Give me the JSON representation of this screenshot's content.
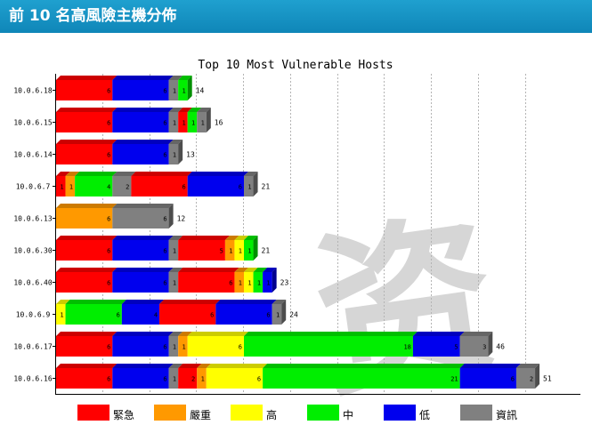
{
  "header": {
    "title": "前 10 名高風險主機分佈"
  },
  "watermark": {
    "glyph": "资"
  },
  "chart_data": {
    "type": "bar",
    "orientation": "horizontal",
    "stacked": true,
    "title": "Top 10 Most Vulnerable Hosts",
    "xlabel": "",
    "ylabel": "",
    "grid": true,
    "legend_position": "bottom",
    "categories": [
      "10.0.6.18",
      "10.0.6.15",
      "10.0.6.14",
      "10.0.6.7",
      "10.0.6.13",
      "10.0.6.30",
      "10.0.6.40",
      "10.0.6.9",
      "10.0.6.17",
      "10.0.6.16"
    ],
    "totals": [
      14,
      16,
      13,
      21,
      12,
      21,
      23,
      24,
      46,
      51
    ],
    "bars": [
      [
        {
          "s": "緊急",
          "v": 6
        },
        {
          "s": "低",
          "v": 6
        },
        {
          "s": "資訊",
          "v": 1
        },
        {
          "s": "中",
          "v": 1
        }
      ],
      [
        {
          "s": "緊急",
          "v": 6
        },
        {
          "s": "低",
          "v": 6
        },
        {
          "s": "資訊",
          "v": 1
        },
        {
          "s": "緊急",
          "v": 1
        },
        {
          "s": "中",
          "v": 1
        },
        {
          "s": "資訊",
          "v": 1
        }
      ],
      [
        {
          "s": "緊急",
          "v": 6
        },
        {
          "s": "低",
          "v": 6
        },
        {
          "s": "資訊",
          "v": 1
        }
      ],
      [
        {
          "s": "緊急",
          "v": 1
        },
        {
          "s": "嚴重",
          "v": 1
        },
        {
          "s": "中",
          "v": 4
        },
        {
          "s": "資訊",
          "v": 2
        },
        {
          "s": "緊急",
          "v": 6
        },
        {
          "s": "低",
          "v": 6
        },
        {
          "s": "資訊",
          "v": 1
        }
      ],
      [
        {
          "s": "嚴重",
          "v": 6
        },
        {
          "s": "資訊",
          "v": 6
        }
      ],
      [
        {
          "s": "緊急",
          "v": 6
        },
        {
          "s": "低",
          "v": 6
        },
        {
          "s": "資訊",
          "v": 1
        },
        {
          "s": "緊急",
          "v": 5
        },
        {
          "s": "嚴重",
          "v": 1
        },
        {
          "s": "高",
          "v": 1
        },
        {
          "s": "中",
          "v": 1
        }
      ],
      [
        {
          "s": "緊急",
          "v": 6
        },
        {
          "s": "低",
          "v": 6
        },
        {
          "s": "資訊",
          "v": 1
        },
        {
          "s": "緊急",
          "v": 6
        },
        {
          "s": "嚴重",
          "v": 1
        },
        {
          "s": "高",
          "v": 1
        },
        {
          "s": "中",
          "v": 1
        },
        {
          "s": "低",
          "v": 1
        }
      ],
      [
        {
          "s": "高",
          "v": 1
        },
        {
          "s": "中",
          "v": 6
        },
        {
          "s": "低",
          "v": 4
        },
        {
          "s": "緊急",
          "v": 6
        },
        {
          "s": "低",
          "v": 6
        },
        {
          "s": "資訊",
          "v": 1
        }
      ],
      [
        {
          "s": "緊急",
          "v": 6
        },
        {
          "s": "低",
          "v": 6
        },
        {
          "s": "資訊",
          "v": 1
        },
        {
          "s": "嚴重",
          "v": 1
        },
        {
          "s": "高",
          "v": 6
        },
        {
          "s": "中",
          "v": 18
        },
        {
          "s": "低",
          "v": 5
        },
        {
          "s": "資訊",
          "v": 3
        }
      ],
      [
        {
          "s": "緊急",
          "v": 6
        },
        {
          "s": "低",
          "v": 6
        },
        {
          "s": "資訊",
          "v": 1
        },
        {
          "s": "緊急",
          "v": 2
        },
        {
          "s": "嚴重",
          "v": 1
        },
        {
          "s": "高",
          "v": 6
        },
        {
          "s": "中",
          "v": 21
        },
        {
          "s": "低",
          "v": 6
        },
        {
          "s": "資訊",
          "v": 2
        }
      ]
    ],
    "series": [
      {
        "name": "緊急",
        "color": "#ff0000"
      },
      {
        "name": "嚴重",
        "color": "#ff9900"
      },
      {
        "name": "高",
        "color": "#ffff00"
      },
      {
        "name": "中",
        "color": "#00ee00"
      },
      {
        "name": "低",
        "color": "#0000ee"
      },
      {
        "name": "資訊",
        "color": "#808080"
      }
    ]
  }
}
